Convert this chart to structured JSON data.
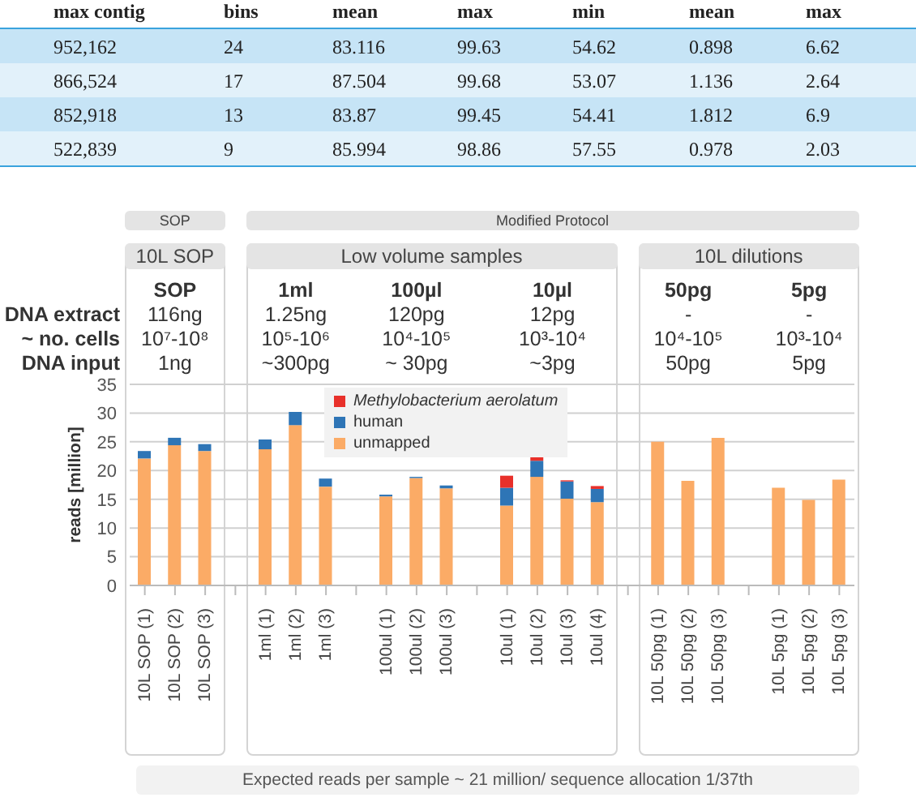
{
  "chart_data": [
    {
      "type": "other",
      "annotations": [
        "max contig",
        "bins",
        "mean",
        "max",
        "min",
        "mean",
        "max",
        "952,162",
        "24",
        "83.116",
        "99.63",
        "54.62",
        "0.898",
        "6.62",
        "866,524",
        "17",
        "87.504",
        "99.68",
        "53.07",
        "1.136",
        "2.64",
        "852,918",
        "13",
        "83.87",
        "99.45",
        "54.41",
        "1.812",
        "6.9",
        "522,839",
        "9",
        "85.994",
        "98.86",
        "57.55",
        "0.978",
        "2.03"
      ]
    },
    {
      "type": "bar",
      "stacked": true,
      "ylabel": "reads [million]",
      "ylim": [
        0,
        35
      ],
      "yticks": [
        0,
        5,
        10,
        15,
        20,
        25,
        30,
        35
      ],
      "grid": "y",
      "legend": "top",
      "categories": [
        "10L SOP (1)",
        "10L SOP (2)",
        "10L SOP (3)",
        null,
        "1ml (1)",
        "1ml (2)",
        "1ml (3)",
        null,
        "100ul (1)",
        "100ul (2)",
        "100ul (3)",
        null,
        "10ul (1)",
        "10ul (2)",
        "10ul (3)",
        "10ul (4)",
        null,
        "10L 50pg (1)",
        "10L 50pg (2)",
        "10L 50pg (3)",
        null,
        "10L 5pg (1)",
        "10L 5pg (2)",
        "10L 5pg (3)"
      ],
      "series": [
        {
          "name": "unmapped",
          "color": "#fbab66",
          "values": [
            22.1,
            24.4,
            23.4,
            null,
            23.7,
            27.9,
            17.2,
            null,
            15.5,
            18.7,
            16.9,
            null,
            13.9,
            18.9,
            15.1,
            14.5,
            null,
            25.0,
            18.2,
            25.7,
            null,
            17.0,
            14.9,
            18.4
          ]
        },
        {
          "name": "human",
          "color": "#2e75b6",
          "values": [
            1.3,
            1.3,
            1.2,
            null,
            1.7,
            2.3,
            1.4,
            null,
            0.3,
            0.2,
            0.5,
            null,
            3.1,
            2.8,
            3.0,
            2.3,
            null,
            null,
            null,
            null,
            null,
            null,
            null,
            null
          ]
        },
        {
          "name": "Methylobacterium aerolatum",
          "color": "#e8302a",
          "values": [
            null,
            null,
            null,
            null,
            null,
            null,
            null,
            null,
            null,
            null,
            null,
            null,
            2.1,
            1.0,
            0.2,
            0.5,
            null,
            null,
            null,
            null,
            null,
            null,
            null,
            null
          ]
        }
      ],
      "annotations": [
        "SOP",
        "Modified Protocol",
        "10L SOP",
        "Low volume samples",
        "10L dilutions",
        "SOP",
        "1ml",
        "100µl",
        "10µl",
        "50pg",
        "5pg",
        "DNA extract",
        "~ no. cells",
        "DNA input",
        "116ng",
        "1.25ng",
        "120pg",
        "12pg",
        "-",
        "-",
        "10⁷-10⁸",
        "10⁵-10⁶",
        "10⁴-10⁵",
        "10³-10⁴",
        "10⁴-10⁵",
        "10³-10⁴",
        "1ng",
        "~300pg",
        "~ 30pg",
        "~3pg",
        "50pg",
        "5pg",
        "Expected reads per sample ~ 21 million/ sequence allocation 1/37th"
      ]
    }
  ]
}
